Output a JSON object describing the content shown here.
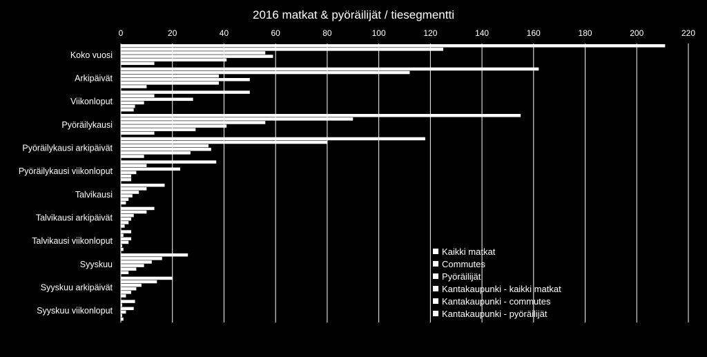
{
  "chart_data": {
    "type": "bar",
    "orientation": "horizontal",
    "title": "2016 matkat & pyöräilijät / tiesegmentti",
    "xlabel": "",
    "ylabel": "",
    "xlim": [
      0,
      220
    ],
    "x_ticks": [
      0,
      20,
      40,
      60,
      80,
      100,
      120,
      140,
      160,
      180,
      200,
      220
    ],
    "grid": true,
    "legend_position": "bottom-right-inside",
    "colors": {
      "background": "#000000",
      "bars": "#ffffff",
      "grid": "#ffffff"
    },
    "categories": [
      "Koko vuosi",
      "Arkipäivät",
      "Viikonloput",
      "Pyöräilykausi",
      "Pyöräilykausi arkipäivät",
      "Pyöräilykausi viikonloput",
      "Talvikausi",
      "Talvikausi arkipäivät",
      "Talvikausi viikonloput",
      "Syyskuu",
      "Syyskuu arkipäivät",
      "Syyskuu viikonloput"
    ],
    "series": [
      {
        "name": "Kaikki matkat",
        "values": [
          211,
          162,
          50,
          155,
          118,
          37,
          17,
          13,
          4,
          26,
          20,
          5.5
        ]
      },
      {
        "name": "Commutes",
        "values": [
          125,
          112,
          13,
          90,
          80,
          10,
          10,
          10,
          1,
          16,
          14,
          0.5
        ]
      },
      {
        "name": "Pyöräilijät",
        "values": [
          56,
          38,
          28,
          56,
          34,
          23,
          7,
          5,
          4,
          12,
          8,
          5
        ]
      },
      {
        "name": "Kantakaupunki - kaikki matkat",
        "values": [
          59,
          50,
          9,
          41,
          35,
          6,
          4.5,
          4,
          3,
          9,
          6,
          2
        ]
      },
      {
        "name": "Kantakaupunki - commutes",
        "values": [
          41,
          38,
          5.5,
          29,
          27,
          4,
          3,
          3,
          0.5,
          6,
          4,
          0.5
        ]
      },
      {
        "name": "Kantakaupunki - pyöräilijät",
        "values": [
          13,
          10,
          5,
          13,
          9,
          4,
          2,
          1.5,
          1,
          3,
          2,
          1
        ]
      }
    ]
  }
}
